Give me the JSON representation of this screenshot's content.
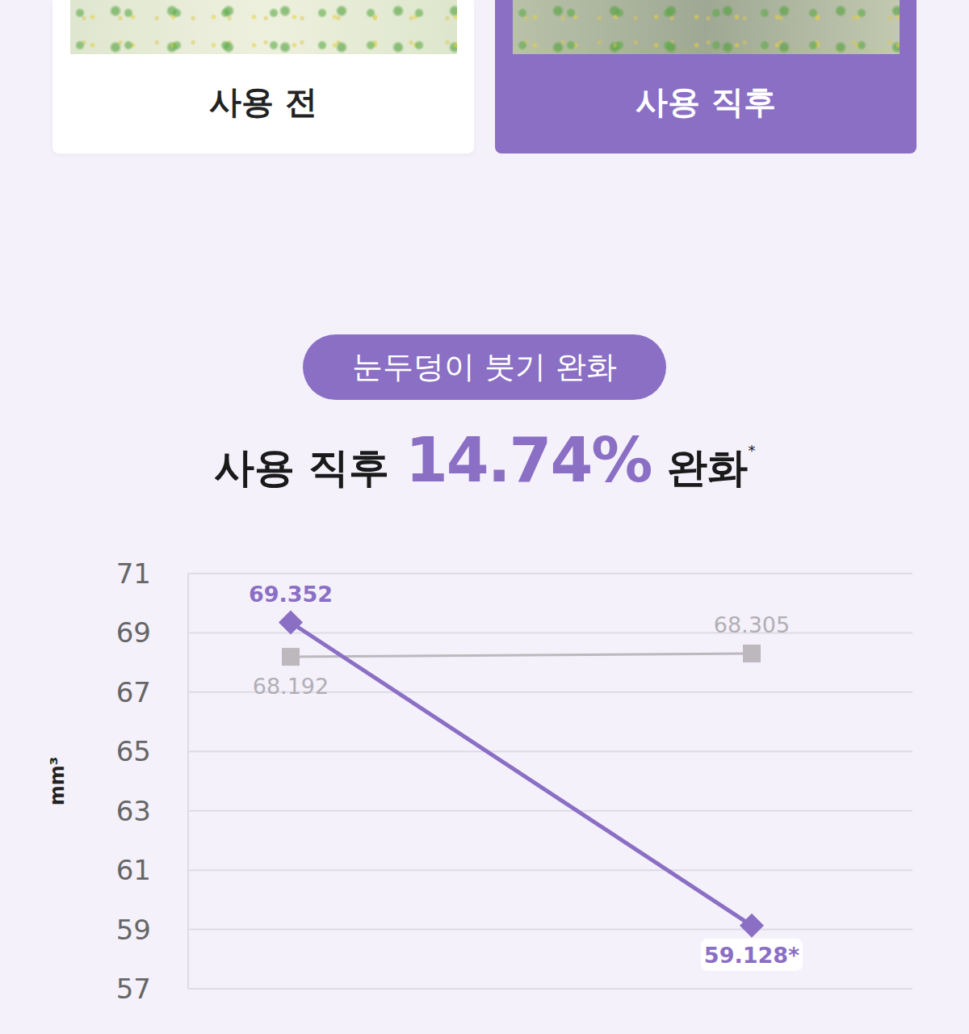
{
  "panels": [
    {
      "label": "사용 전"
    },
    {
      "label": "사용 직후"
    }
  ],
  "badge": "눈두덩이 붓기 완화",
  "headline": {
    "prefix": "사용 직후",
    "highlight": "14.74%",
    "suffix": "완화",
    "mark": "*"
  },
  "chart_data": {
    "type": "line",
    "categories": [
      null,
      null
    ],
    "y_label": "mm³",
    "ylim": [
      57,
      71
    ],
    "yticks": [
      57,
      59,
      61,
      63,
      65,
      67,
      69,
      71
    ],
    "grid": true,
    "data_labels": true,
    "tick_labels": "y",
    "series": [
      {
        "color": "#bdb8be",
        "marker": "square",
        "values": [
          68.192,
          68.305
        ],
        "value_labels": [
          "68.192",
          "68.305"
        ]
      },
      {
        "color": "#8a6fc4",
        "marker": "diamond",
        "values": [
          69.352,
          59.128
        ],
        "value_labels": [
          "69.352",
          "59.128*"
        ]
      }
    ]
  }
}
